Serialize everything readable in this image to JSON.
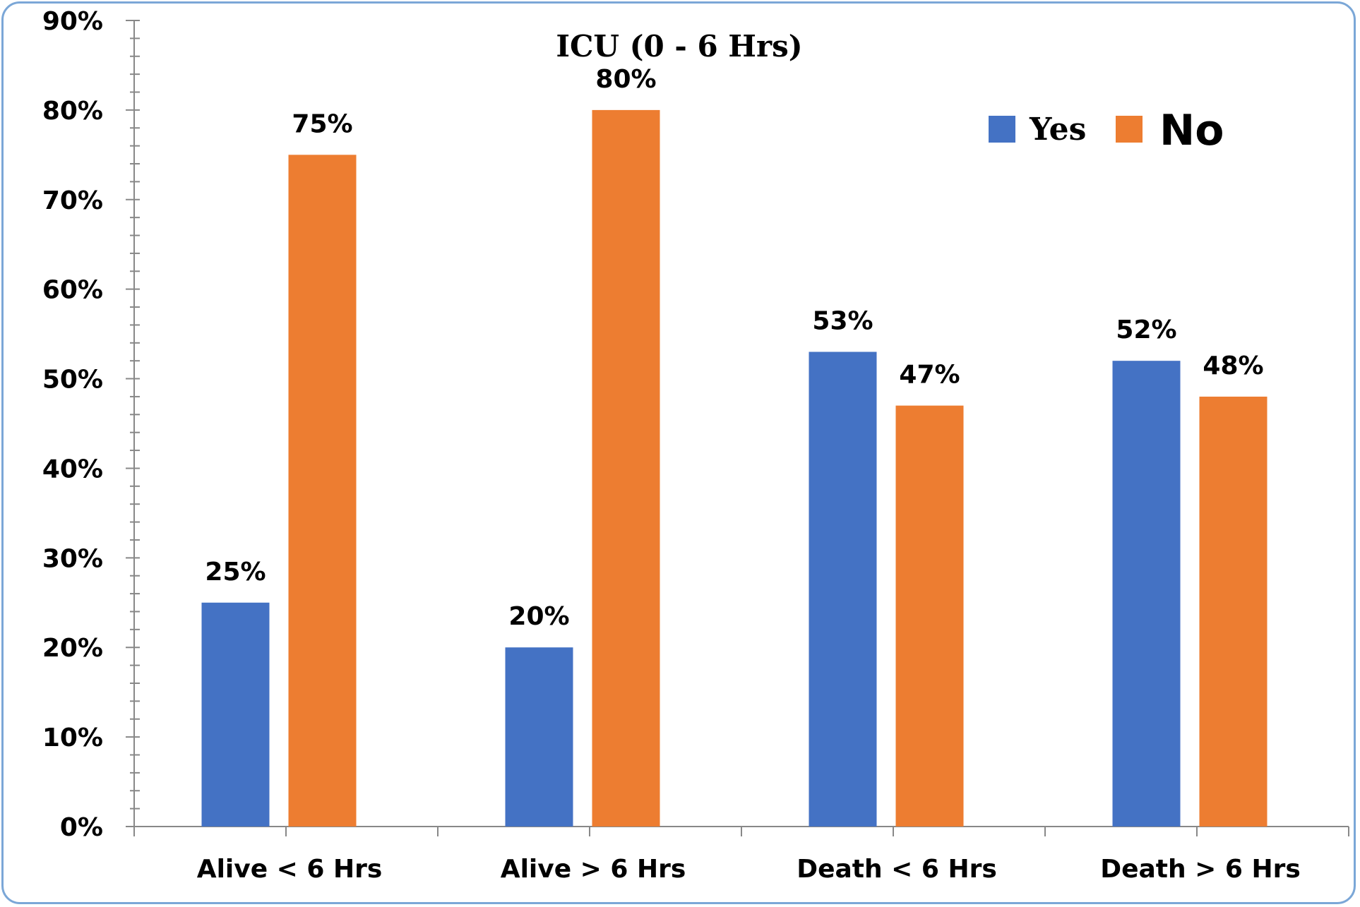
{
  "chart_data": {
    "type": "bar",
    "title": "ICU (0 - 6 Hrs)",
    "xlabel": "",
    "ylabel": "",
    "categories": [
      "Alive < 6 Hrs",
      "Alive > 6 Hrs",
      "Death < 6 Hrs",
      "Death > 6 Hrs"
    ],
    "series": [
      {
        "name": "Yes",
        "color": "#4472c4",
        "values": [
          25,
          20,
          53,
          52
        ],
        "value_labels": [
          "25%",
          "20%",
          "53%",
          "52%"
        ]
      },
      {
        "name": "No",
        "color": "#ed7d31",
        "values": [
          75,
          80,
          47,
          48
        ],
        "value_labels": [
          "75%",
          "80%",
          "47%",
          "48%"
        ]
      }
    ],
    "ylim": [
      0,
      90
    ],
    "yticks": [
      0,
      10,
      20,
      30,
      40,
      50,
      60,
      70,
      80,
      90
    ],
    "ytick_labels": [
      "0%",
      "10%",
      "20%",
      "30%",
      "40%",
      "50%",
      "60%",
      "70%",
      "80%",
      "90%"
    ],
    "grid": false,
    "legend_position": "top-right"
  }
}
